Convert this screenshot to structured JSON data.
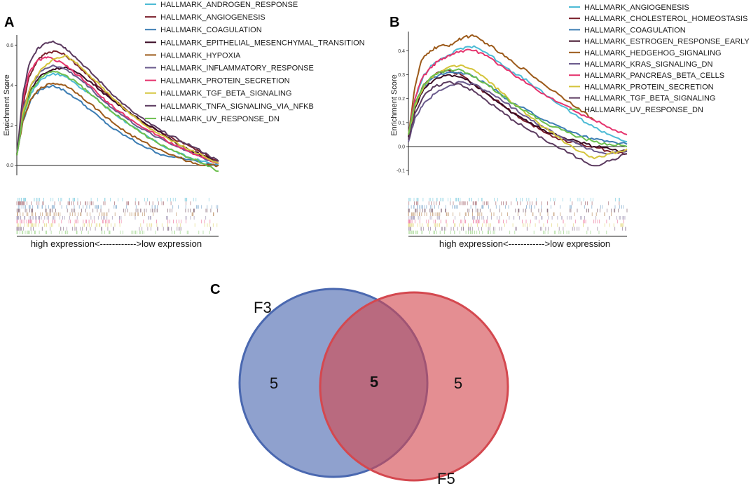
{
  "panels": {
    "A": {
      "label": "A"
    },
    "B": {
      "label": "B"
    },
    "C": {
      "label": "C"
    }
  },
  "chart_data": [
    {
      "id": "A",
      "type": "line",
      "title": "",
      "xlabel": "high expression<------------>low expression",
      "ylabel": "Enrichment Score",
      "yticks": [
        "0.0",
        "0.2",
        "0.4",
        "0.6"
      ],
      "ylim": [
        -0.05,
        0.65
      ],
      "xlim": [
        0,
        100
      ],
      "series": [
        {
          "name": "HALLMARK_ANDROGEN_RESPONSE",
          "color": "#4DBBD5",
          "x": [
            0,
            3,
            7,
            12,
            18,
            25,
            30,
            36,
            42,
            48,
            55,
            62,
            70,
            78,
            85,
            92,
            100
          ],
          "y": [
            0.05,
            0.25,
            0.36,
            0.43,
            0.46,
            0.44,
            0.4,
            0.36,
            0.31,
            0.26,
            0.21,
            0.16,
            0.11,
            0.07,
            0.04,
            0.02,
            0.0
          ]
        },
        {
          "name": "HALLMARK_ANGIOGENESIS",
          "color": "#7A1F2B",
          "x": [
            0,
            3,
            6,
            10,
            14,
            19,
            24,
            30,
            36,
            42,
            48,
            55,
            62,
            70,
            78,
            85,
            92,
            100
          ],
          "y": [
            0.05,
            0.3,
            0.44,
            0.52,
            0.56,
            0.57,
            0.55,
            0.5,
            0.44,
            0.38,
            0.33,
            0.27,
            0.22,
            0.17,
            0.13,
            0.1,
            0.06,
            0.02
          ]
        },
        {
          "name": "HALLMARK_COAGULATION",
          "color": "#3C7DB3",
          "x": [
            0,
            3,
            7,
            12,
            18,
            24,
            30,
            36,
            42,
            48,
            55,
            62,
            70,
            78,
            85,
            92,
            100
          ],
          "y": [
            0.05,
            0.22,
            0.33,
            0.38,
            0.4,
            0.37,
            0.33,
            0.28,
            0.23,
            0.18,
            0.14,
            0.1,
            0.06,
            0.04,
            0.03,
            0.01,
            0.0
          ]
        },
        {
          "name": "HALLMARK_EPITHELIAL_MESENCHYMAL_TRANSITION",
          "color": "#3A0A24",
          "x": [
            0,
            3,
            7,
            12,
            18,
            24,
            30,
            36,
            42,
            48,
            55,
            62,
            70,
            78,
            85,
            92,
            100
          ],
          "y": [
            0.05,
            0.26,
            0.38,
            0.45,
            0.48,
            0.49,
            0.46,
            0.42,
            0.37,
            0.32,
            0.27,
            0.22,
            0.17,
            0.12,
            0.08,
            0.05,
            0.01
          ]
        },
        {
          "name": "HALLMARK_HYPOXIA",
          "color": "#9C5A1A",
          "x": [
            0,
            3,
            7,
            12,
            18,
            24,
            30,
            36,
            42,
            48,
            55,
            62,
            70,
            78,
            85,
            92,
            100
          ],
          "y": [
            0.05,
            0.22,
            0.33,
            0.39,
            0.41,
            0.4,
            0.36,
            0.31,
            0.26,
            0.21,
            0.16,
            0.12,
            0.08,
            0.05,
            0.02,
            0.0,
            0.0
          ]
        },
        {
          "name": "HALLMARK_INFLAMMATORY_RESPONSE",
          "color": "#6A5A8C",
          "x": [
            0,
            3,
            7,
            12,
            18,
            24,
            30,
            36,
            42,
            48,
            55,
            62,
            70,
            78,
            85,
            92,
            100
          ],
          "y": [
            0.05,
            0.28,
            0.4,
            0.47,
            0.5,
            0.48,
            0.44,
            0.39,
            0.33,
            0.28,
            0.23,
            0.18,
            0.14,
            0.1,
            0.07,
            0.04,
            0.01
          ]
        },
        {
          "name": "HALLMARK_PROTEIN_SECRETION",
          "color": "#E5336D",
          "x": [
            0,
            3,
            6,
            10,
            14,
            18,
            24,
            30,
            36,
            42,
            48,
            55,
            62,
            70,
            78,
            85,
            92,
            100
          ],
          "y": [
            0.05,
            0.32,
            0.46,
            0.52,
            0.54,
            0.53,
            0.5,
            0.45,
            0.4,
            0.34,
            0.29,
            0.24,
            0.19,
            0.15,
            0.1,
            0.07,
            0.04,
            0.01
          ]
        },
        {
          "name": "HALLMARK_TGF_BETA_SIGNALING",
          "color": "#D4C43A",
          "x": [
            0,
            3,
            7,
            12,
            18,
            24,
            30,
            36,
            42,
            48,
            55,
            62,
            70,
            78,
            85,
            92,
            100
          ],
          "y": [
            0.05,
            0.26,
            0.4,
            0.48,
            0.53,
            0.55,
            0.51,
            0.45,
            0.39,
            0.33,
            0.27,
            0.21,
            0.16,
            0.12,
            0.08,
            0.05,
            0.01
          ]
        },
        {
          "name": "HALLMARK_TNFA_SIGNALING_VIA_NFKB",
          "color": "#5B3A5F",
          "x": [
            0,
            3,
            6,
            10,
            14,
            18,
            22,
            26,
            32,
            38,
            44,
            50,
            57,
            64,
            72,
            80,
            88,
            95,
            100
          ],
          "y": [
            0.05,
            0.35,
            0.5,
            0.58,
            0.61,
            0.62,
            0.6,
            0.57,
            0.51,
            0.45,
            0.39,
            0.33,
            0.27,
            0.22,
            0.17,
            0.13,
            0.09,
            0.05,
            0.02
          ]
        },
        {
          "name": "HALLMARK_UV_RESPONSE_DN",
          "color": "#6CBF4E",
          "x": [
            0,
            3,
            7,
            12,
            18,
            24,
            30,
            36,
            42,
            48,
            55,
            62,
            70,
            78,
            85,
            92,
            100
          ],
          "y": [
            0.05,
            0.24,
            0.37,
            0.44,
            0.47,
            0.45,
            0.41,
            0.36,
            0.31,
            0.26,
            0.21,
            0.16,
            0.11,
            0.07,
            0.04,
            0.01,
            -0.03
          ]
        }
      ]
    },
    {
      "id": "B",
      "type": "line",
      "title": "",
      "xlabel": "high expression<------------>low expression",
      "ylabel": "Enrichment Score",
      "yticks": [
        "-0.1",
        "0.0",
        "0.1",
        "0.2",
        "0.3",
        "0.4"
      ],
      "ylim": [
        -0.12,
        0.48
      ],
      "xlim": [
        0,
        100
      ],
      "series": [
        {
          "name": "HALLMARK_ANGIOGENESIS",
          "color": "#4DBBD5",
          "x": [
            0,
            3,
            7,
            12,
            18,
            24,
            30,
            36,
            42,
            48,
            55,
            62,
            70,
            78,
            85,
            92,
            100
          ],
          "y": [
            0.05,
            0.2,
            0.3,
            0.35,
            0.38,
            0.41,
            0.42,
            0.39,
            0.35,
            0.31,
            0.27,
            0.22,
            0.17,
            0.12,
            0.08,
            0.05,
            0.02
          ]
        },
        {
          "name": "HALLMARK_CHOLESTEROL_HOMEOSTASIS",
          "color": "#7A1F2B",
          "x": [
            0,
            3,
            7,
            12,
            18,
            24,
            30,
            36,
            42,
            48,
            55,
            62,
            70,
            78,
            85,
            92,
            100
          ],
          "y": [
            0.05,
            0.18,
            0.26,
            0.3,
            0.32,
            0.3,
            0.26,
            0.22,
            0.18,
            0.14,
            0.1,
            0.06,
            0.03,
            0.01,
            0.0,
            -0.02,
            -0.03
          ]
        },
        {
          "name": "HALLMARK_COAGULATION",
          "color": "#3C7DB3",
          "x": [
            0,
            3,
            7,
            12,
            18,
            24,
            30,
            36,
            42,
            48,
            55,
            62,
            70,
            78,
            85,
            92,
            100
          ],
          "y": [
            0.05,
            0.17,
            0.25,
            0.29,
            0.31,
            0.31,
            0.29,
            0.26,
            0.22,
            0.18,
            0.15,
            0.11,
            0.08,
            0.05,
            0.03,
            0.02,
            0.01
          ]
        },
        {
          "name": "HALLMARK_ESTROGEN_RESPONSE_EARLY",
          "color": "#3A0A24",
          "x": [
            0,
            3,
            7,
            12,
            18,
            24,
            30,
            36,
            42,
            48,
            55,
            62,
            70,
            78,
            85,
            92,
            100
          ],
          "y": [
            0.04,
            0.16,
            0.24,
            0.28,
            0.3,
            0.29,
            0.26,
            0.22,
            0.18,
            0.14,
            0.1,
            0.07,
            0.04,
            0.02,
            0.0,
            -0.01,
            -0.02
          ]
        },
        {
          "name": "HALLMARK_HEDGEHOG_SIGNALING",
          "color": "#9C5A1A",
          "x": [
            0,
            3,
            6,
            10,
            14,
            18,
            22,
            26,
            30,
            36,
            42,
            48,
            55,
            62,
            70,
            78,
            85
          ],
          "y": [
            0.05,
            0.25,
            0.36,
            0.4,
            0.42,
            0.42,
            0.44,
            0.46,
            0.46,
            0.43,
            0.39,
            0.35,
            0.31,
            0.26,
            0.21,
            0.16,
            0.11
          ]
        },
        {
          "name": "HALLMARK_KRAS_SIGNALING_DN",
          "color": "#6A5A8C",
          "x": [
            0,
            3,
            7,
            12,
            18,
            24,
            30,
            36,
            42,
            48,
            55,
            62,
            70,
            78,
            85,
            92,
            100
          ],
          "y": [
            0.02,
            0.12,
            0.18,
            0.22,
            0.25,
            0.27,
            0.26,
            0.23,
            0.2,
            0.16,
            0.12,
            0.08,
            0.04,
            0.01,
            -0.02,
            -0.03,
            -0.02
          ]
        },
        {
          "name": "HALLMARK_PANCREAS_BETA_CELLS",
          "color": "#E5336D",
          "x": [
            0,
            3,
            6,
            10,
            14,
            18,
            24,
            30,
            36,
            42,
            48,
            55,
            62,
            70,
            78,
            85,
            92,
            100
          ],
          "y": [
            0.05,
            0.2,
            0.28,
            0.33,
            0.36,
            0.38,
            0.4,
            0.4,
            0.38,
            0.34,
            0.3,
            0.26,
            0.22,
            0.18,
            0.14,
            0.11,
            0.08,
            0.05
          ]
        },
        {
          "name": "HALLMARK_PROTEIN_SECRETION",
          "color": "#D4C43A",
          "x": [
            0,
            3,
            7,
            12,
            18,
            24,
            30,
            36,
            42,
            48,
            55,
            62,
            70,
            78,
            85,
            92,
            100
          ],
          "y": [
            0.05,
            0.17,
            0.25,
            0.3,
            0.33,
            0.34,
            0.32,
            0.28,
            0.23,
            0.18,
            0.13,
            0.08,
            0.03,
            -0.02,
            -0.05,
            -0.03,
            -0.01
          ]
        },
        {
          "name": "HALLMARK_TGF_BETA_SIGNALING",
          "color": "#5B3A5F",
          "x": [
            0,
            3,
            7,
            12,
            18,
            24,
            30,
            36,
            42,
            48,
            55,
            62,
            70,
            78,
            85,
            92,
            100
          ],
          "y": [
            0.03,
            0.14,
            0.21,
            0.25,
            0.27,
            0.26,
            0.23,
            0.19,
            0.15,
            0.11,
            0.07,
            0.03,
            -0.01,
            -0.05,
            -0.08,
            -0.06,
            -0.03
          ]
        },
        {
          "name": "HALLMARK_UV_RESPONSE_DN",
          "color": "#6CBF4E",
          "x": [
            0,
            3,
            7,
            12,
            18,
            24,
            30,
            36,
            42,
            48,
            55,
            62,
            70,
            78,
            85,
            92,
            100
          ],
          "y": [
            0.05,
            0.18,
            0.26,
            0.3,
            0.32,
            0.32,
            0.29,
            0.26,
            0.22,
            0.18,
            0.14,
            0.1,
            0.07,
            0.04,
            0.02,
            0.01,
            0.0
          ]
        }
      ]
    }
  ],
  "venn": {
    "sets": [
      {
        "name": "F3",
        "color": "#4A68B0"
      },
      {
        "name": "F5",
        "color": "#D4484F"
      }
    ],
    "only_left": "5",
    "intersection": "5",
    "only_right": "5"
  }
}
